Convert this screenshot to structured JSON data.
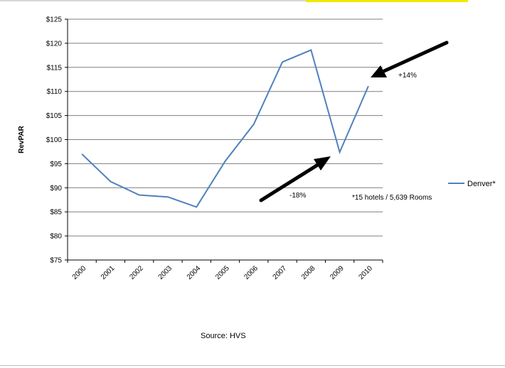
{
  "chart_data": {
    "type": "line",
    "categories": [
      "2000",
      "2001",
      "2002",
      "2003",
      "2004",
      "2005",
      "2006",
      "2007",
      "2008",
      "2009",
      "2010"
    ],
    "series": [
      {
        "name": "Denver*",
        "values": [
          97,
          91.3,
          88.5,
          88.1,
          86,
          95.5,
          103.2,
          116.1,
          118.6,
          97.4,
          111.1
        ]
      }
    ],
    "ylabel": "RevPAR",
    "xlabel": "",
    "ylim": [
      75,
      125
    ],
    "yticks": [
      "$75",
      "$80",
      "$85",
      "$90",
      "$95",
      "$100",
      "$105",
      "$110",
      "$115",
      "$120",
      "$125"
    ],
    "grid": true,
    "legend": "right",
    "annotations": [
      {
        "text": "-18%",
        "label_for": "2009 drop"
      },
      {
        "text": "+14%",
        "label_for": "2010 rebound"
      },
      {
        "text": "*15 hotels / 5,639 Rooms"
      }
    ],
    "source": "Source:  HVS",
    "colors": {
      "line": "#4f81bd",
      "grid": "#7f7f7f",
      "arrow": "#000000"
    }
  }
}
